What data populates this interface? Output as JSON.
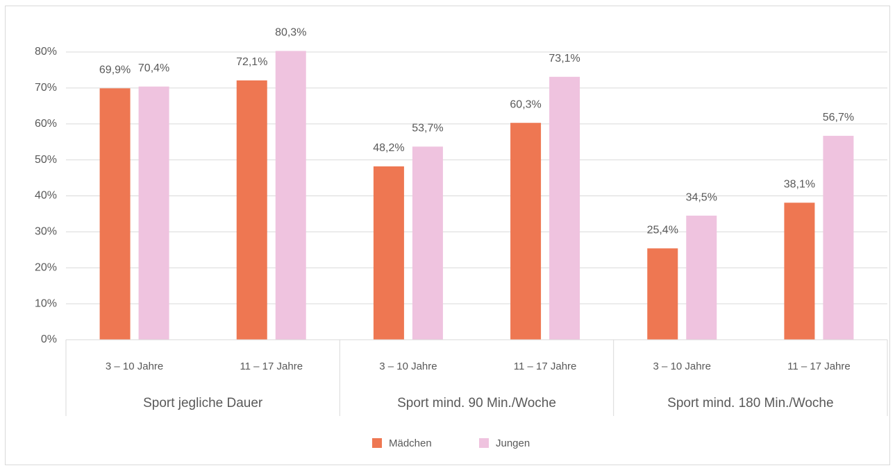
{
  "chart_data": {
    "type": "bar",
    "categories": [
      "3 – 10 Jahre",
      "11 – 17 Jahre",
      "3 – 10 Jahre",
      "11 – 17 Jahre",
      "3 – 10 Jahre",
      "11 – 17 Jahre"
    ],
    "category_groups": [
      "Sport jegliche Dauer",
      "Sport mind. 90 Min./Woche",
      "Sport mind. 180 Min./Woche"
    ],
    "series": [
      {
        "name": "Mädchen",
        "color": "#ee7752",
        "values": [
          69.9,
          72.1,
          48.2,
          60.3,
          25.4,
          38.1
        ],
        "value_labels": [
          "69,9%",
          "72,1%",
          "48,2%",
          "60,3%",
          "25,4%",
          "38,1%"
        ]
      },
      {
        "name": "Jungen",
        "color": "#efc3df",
        "values": [
          70.4,
          80.3,
          53.7,
          73.1,
          34.5,
          56.7
        ],
        "value_labels": [
          "70,4%",
          "80,3%",
          "53,7%",
          "73,1%",
          "34,5%",
          "56,7%"
        ]
      }
    ],
    "ylim": [
      0,
      80
    ],
    "yticks": [
      {
        "value": 0,
        "label": "0%"
      },
      {
        "value": 10,
        "label": "10%"
      },
      {
        "value": 20,
        "label": "20%"
      },
      {
        "value": 30,
        "label": "30%"
      },
      {
        "value": 40,
        "label": "40%"
      },
      {
        "value": 50,
        "label": "50%"
      },
      {
        "value": 60,
        "label": "60%"
      },
      {
        "value": 70,
        "label": "70%"
      },
      {
        "value": 80,
        "label": "80%"
      }
    ],
    "grid": true,
    "legend": "bottom"
  }
}
